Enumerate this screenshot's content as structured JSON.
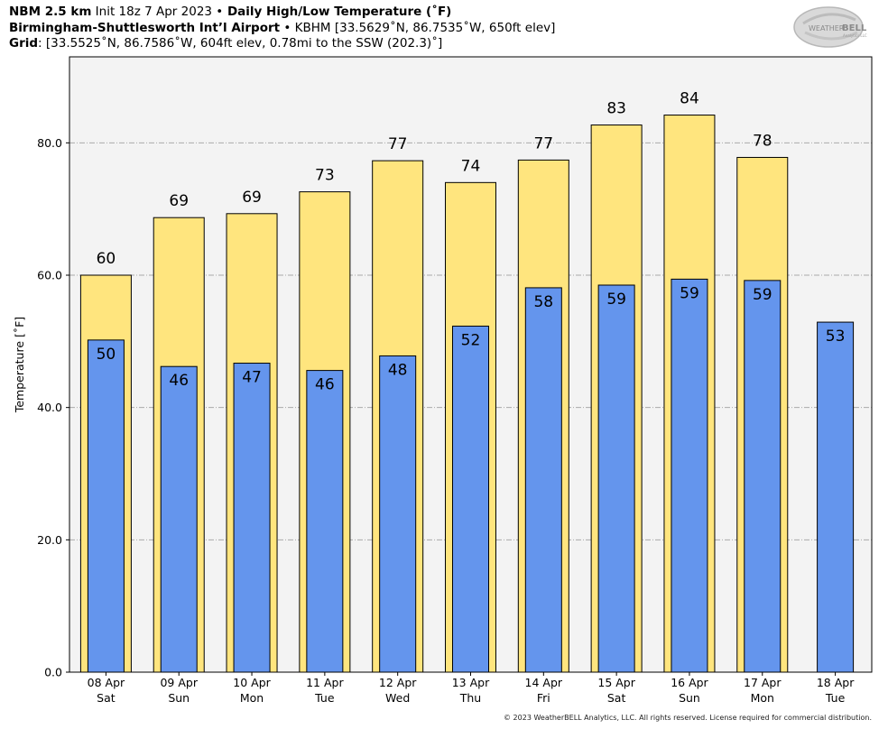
{
  "header": {
    "line1_bold": "NBM 2.5 km",
    "line1_init": " Init 18z 7 Apr 2023 ",
    "line1_sep": "•",
    "line1_title": " Daily High/Low Temperature (˚F)",
    "line2_bold": "Birmingham-Shuttlesworth Int’l Airport",
    "line2_rest": " • KBHM [33.5629˚N, 86.7535˚W, 650ft elev]",
    "line3_bold": "Grid",
    "line3_rest": ": [33.5525˚N, 86.7586˚W, 604ft elev, 0.78mi to the SSW (202.3)˚]"
  },
  "logo": {
    "text1": "WEATHER",
    "text2": "BELL",
    "sub": "Analytics LLC"
  },
  "footer": {
    "text": "© 2023 WeatherBELL Analytics, LLC. All rights reserved. License required for commercial distribution."
  },
  "chart_data": {
    "type": "bar",
    "categories": [
      [
        "08 Apr",
        "Sat"
      ],
      [
        "09 Apr",
        "Sun"
      ],
      [
        "10 Apr",
        "Mon"
      ],
      [
        "11 Apr",
        "Tue"
      ],
      [
        "12 Apr",
        "Wed"
      ],
      [
        "13 Apr",
        "Thu"
      ],
      [
        "14 Apr",
        "Fri"
      ],
      [
        "15 Apr",
        "Sat"
      ],
      [
        "16 Apr",
        "Sun"
      ],
      [
        "17 Apr",
        "Mon"
      ],
      [
        "18 Apr",
        "Tue"
      ]
    ],
    "series": [
      {
        "values": [
          60,
          68.7,
          69.3,
          72.6,
          77.3,
          74,
          77.4,
          82.7,
          84.2,
          77.8,
          null
        ],
        "labels": [
          "60",
          "69",
          "69",
          "73",
          "77",
          "74",
          "77",
          "83",
          "84",
          "78",
          ""
        ],
        "color": "#ffe57e"
      },
      {
        "values": [
          50.2,
          46.2,
          46.7,
          45.6,
          47.8,
          52.3,
          58.1,
          58.5,
          59.4,
          59.2,
          52.9
        ],
        "labels": [
          "50",
          "46",
          "47",
          "46",
          "48",
          "52",
          "58",
          "59",
          "59",
          "59",
          "53"
        ],
        "color": "#6495ed"
      }
    ],
    "ylabel": "Temperature [˚F]",
    "ylim": [
      0,
      93
    ],
    "yticks": [
      0,
      20,
      40,
      60,
      80
    ],
    "ytick_labels": [
      "0.0",
      "20.0",
      "40.0",
      "60.0",
      "80.0"
    ],
    "grid": "horizontal dashed",
    "plot_bg": "#f3f3f3"
  }
}
